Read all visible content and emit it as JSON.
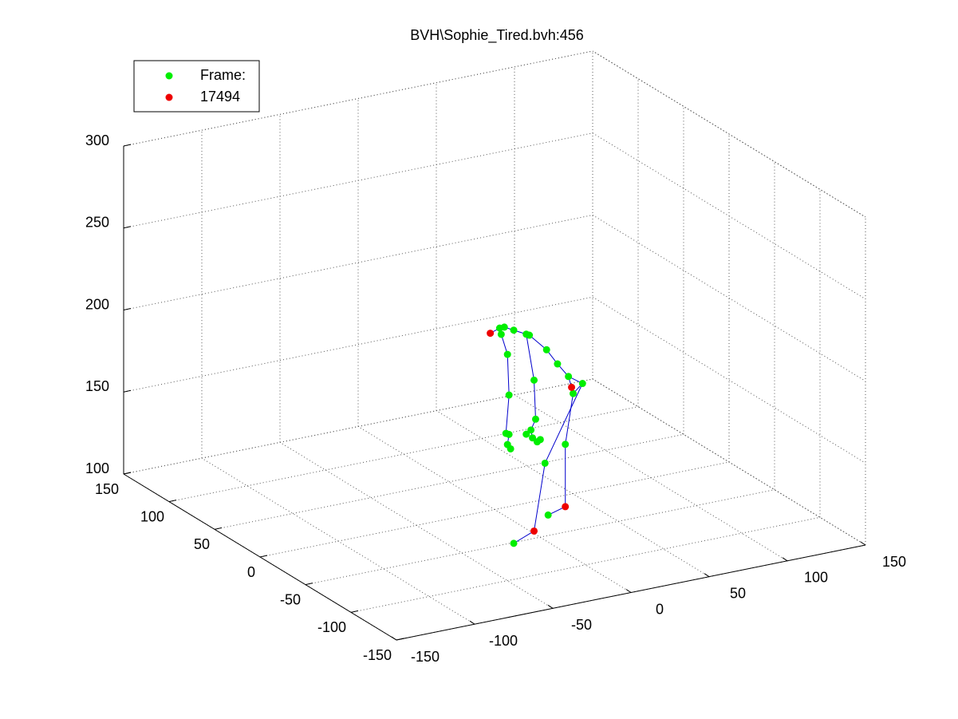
{
  "chart_data": {
    "type": "scatter3d",
    "title": "BVH\\Sophie_Tired.bvh:456",
    "xlim": [
      -150,
      150
    ],
    "xticks": [
      -150,
      -100,
      -50,
      0,
      50,
      100,
      150
    ],
    "ylim": [
      -150,
      150
    ],
    "yticks": [
      -150,
      -100,
      -50,
      0,
      50,
      100,
      150
    ],
    "zlim": [
      100,
      300
    ],
    "zticks": [
      100,
      150,
      200,
      250,
      300
    ],
    "grid": true,
    "legend": "upper left",
    "line_color": "#0000cc",
    "series": [
      {
        "name": "Frame:",
        "color": "#00ee00",
        "x": [
          -20,
          -17,
          -19,
          -11,
          -3,
          -1,
          -15,
          10,
          17,
          24,
          33,
          2,
          27,
          -14,
          3,
          -16,
          -14,
          -3,
          0,
          1,
          4,
          6,
          -15,
          -13,
          22,
          9,
          11,
          -11
        ],
        "y": [
          -40,
          -40,
          -40,
          -40,
          -40,
          -40,
          -40,
          -40,
          -40,
          -40,
          -40,
          -40,
          -40,
          -40,
          -40,
          -40,
          -40,
          -40,
          -40,
          -40,
          -40,
          -40,
          -40,
          -40,
          -40,
          -40,
          -40,
          -40
        ],
        "z": [
          228,
          228,
          224,
          225,
          221,
          220,
          211,
          209,
          199,
          190,
          184,
          192,
          179,
          186,
          168,
          163,
          162,
          160,
          162,
          157,
          154,
          155,
          156,
          153,
          149,
          140,
          108,
          95
        ]
      },
      {
        "name": "17494",
        "color": "#ee0000",
        "x": [
          -26,
          26,
          22,
          2
        ],
        "y": [
          -40,
          -40,
          -40,
          -40
        ],
        "z": [
          226,
          183,
          111,
          100
        ]
      }
    ],
    "links": [
      [
        28,
        0
      ],
      [
        0,
        1
      ],
      [
        1,
        3
      ],
      [
        0,
        2
      ],
      [
        3,
        4
      ],
      [
        4,
        5
      ],
      [
        2,
        6
      ],
      [
        6,
        13
      ],
      [
        13,
        15
      ],
      [
        15,
        16
      ],
      [
        16,
        22
      ],
      [
        22,
        23
      ],
      [
        5,
        7
      ],
      [
        7,
        8
      ],
      [
        8,
        9
      ],
      [
        9,
        29
      ],
      [
        9,
        10
      ],
      [
        10,
        12
      ],
      [
        4,
        11
      ],
      [
        11,
        14
      ],
      [
        14,
        18
      ],
      [
        18,
        19
      ],
      [
        19,
        20
      ],
      [
        20,
        21
      ],
      [
        17,
        18
      ],
      [
        10,
        25
      ],
      [
        25,
        31
      ],
      [
        31,
        27
      ],
      [
        12,
        24
      ],
      [
        24,
        30
      ],
      [
        30,
        26
      ]
    ]
  }
}
